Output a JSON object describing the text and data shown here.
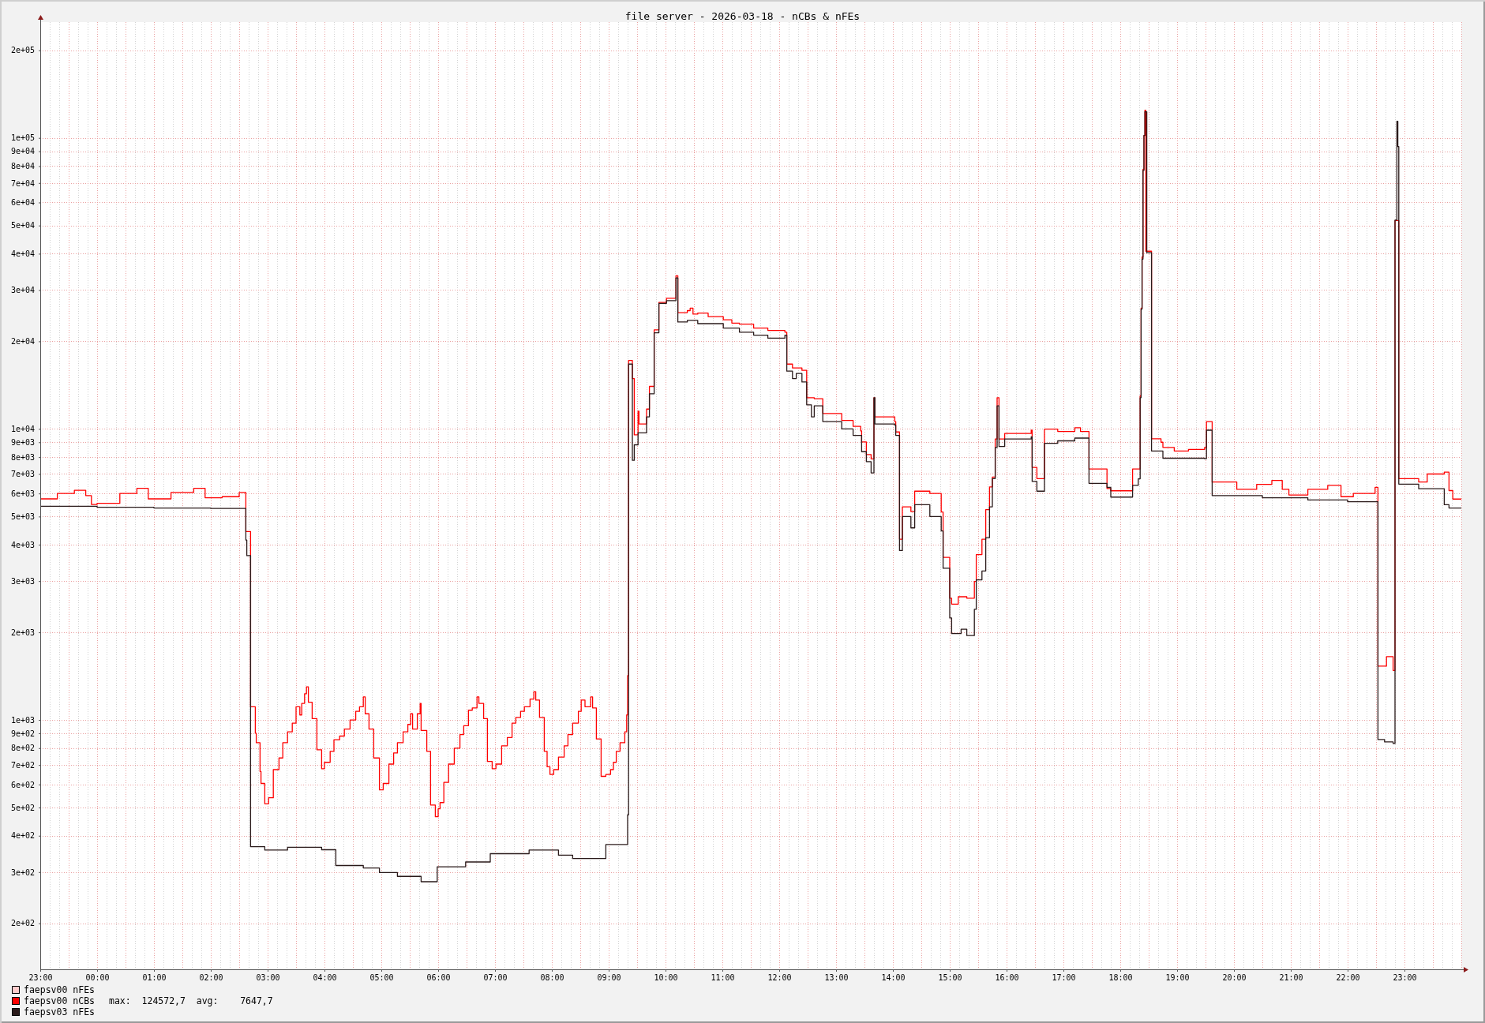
{
  "chart_data": {
    "type": "step",
    "title": "file server - 2026-03-18 - nCBs & nFEs",
    "log": "y",
    "grid": true,
    "legend": "bottom left",
    "xlim": [
      "2026-03-17T23:00",
      "2026-03-19T00:00"
    ],
    "ylim": [
      139,
      250000
    ],
    "xticks": [
      {
        "value": "2026-03-17T23:00",
        "label": "23:00"
      },
      {
        "value": "2026-03-17T23:10",
        "label": null
      },
      {
        "value": "2026-03-17T23:20",
        "label": null
      },
      {
        "value": "2026-03-17T23:30",
        "label": null
      },
      {
        "value": "2026-03-17T23:40",
        "label": null
      },
      {
        "value": "2026-03-17T23:50",
        "label": null
      },
      {
        "value": "2026-03-18T00:00",
        "label": "00:00"
      },
      {
        "value": "2026-03-18T00:10",
        "label": null
      },
      {
        "value": "2026-03-18T00:20",
        "label": null
      },
      {
        "value": "2026-03-18T00:30",
        "label": null
      },
      {
        "value": "2026-03-18T00:40",
        "label": null
      },
      {
        "value": "2026-03-18T00:50",
        "label": null
      },
      {
        "value": "2026-03-18T01:00",
        "label": "01:00"
      },
      {
        "value": "2026-03-18T01:10",
        "label": null
      },
      {
        "value": "2026-03-18T01:20",
        "label": null
      },
      {
        "value": "2026-03-18T01:30",
        "label": null
      },
      {
        "value": "2026-03-18T01:40",
        "label": null
      },
      {
        "value": "2026-03-18T01:50",
        "label": null
      },
      {
        "value": "2026-03-18T02:00",
        "label": "02:00"
      },
      {
        "value": "2026-03-18T02:10",
        "label": null
      },
      {
        "value": "2026-03-18T02:20",
        "label": null
      },
      {
        "value": "2026-03-18T02:30",
        "label": null
      },
      {
        "value": "2026-03-18T02:40",
        "label": null
      },
      {
        "value": "2026-03-18T02:50",
        "label": null
      },
      {
        "value": "2026-03-18T03:00",
        "label": "03:00"
      },
      {
        "value": "2026-03-18T03:10",
        "label": null
      },
      {
        "value": "2026-03-18T03:20",
        "label": null
      },
      {
        "value": "2026-03-18T03:30",
        "label": null
      },
      {
        "value": "2026-03-18T03:40",
        "label": null
      },
      {
        "value": "2026-03-18T03:50",
        "label": null
      },
      {
        "value": "2026-03-18T04:00",
        "label": "04:00"
      },
      {
        "value": "2026-03-18T04:10",
        "label": null
      },
      {
        "value": "2026-03-18T04:20",
        "label": null
      },
      {
        "value": "2026-03-18T04:30",
        "label": null
      },
      {
        "value": "2026-03-18T04:40",
        "label": null
      },
      {
        "value": "2026-03-18T04:50",
        "label": null
      },
      {
        "value": "2026-03-18T05:00",
        "label": "05:00"
      },
      {
        "value": "2026-03-18T05:10",
        "label": null
      },
      {
        "value": "2026-03-18T05:20",
        "label": null
      },
      {
        "value": "2026-03-18T05:30",
        "label": null
      },
      {
        "value": "2026-03-18T05:40",
        "label": null
      },
      {
        "value": "2026-03-18T05:50",
        "label": null
      },
      {
        "value": "2026-03-18T06:00",
        "label": "06:00"
      },
      {
        "value": "2026-03-18T06:10",
        "label": null
      },
      {
        "value": "2026-03-18T06:20",
        "label": null
      },
      {
        "value": "2026-03-18T06:30",
        "label": null
      },
      {
        "value": "2026-03-18T06:40",
        "label": null
      },
      {
        "value": "2026-03-18T06:50",
        "label": null
      },
      {
        "value": "2026-03-18T07:00",
        "label": "07:00"
      },
      {
        "value": "2026-03-18T07:10",
        "label": null
      },
      {
        "value": "2026-03-18T07:20",
        "label": null
      },
      {
        "value": "2026-03-18T07:30",
        "label": null
      },
      {
        "value": "2026-03-18T07:40",
        "label": null
      },
      {
        "value": "2026-03-18T07:50",
        "label": null
      },
      {
        "value": "2026-03-18T08:00",
        "label": "08:00"
      },
      {
        "value": "2026-03-18T08:10",
        "label": null
      },
      {
        "value": "2026-03-18T08:20",
        "label": null
      },
      {
        "value": "2026-03-18T08:30",
        "label": null
      },
      {
        "value": "2026-03-18T08:40",
        "label": null
      },
      {
        "value": "2026-03-18T08:50",
        "label": null
      },
      {
        "value": "2026-03-18T09:00",
        "label": "09:00"
      },
      {
        "value": "2026-03-18T09:10",
        "label": null
      },
      {
        "value": "2026-03-18T09:20",
        "label": null
      },
      {
        "value": "2026-03-18T09:30",
        "label": null
      },
      {
        "value": "2026-03-18T09:40",
        "label": null
      },
      {
        "value": "2026-03-18T09:50",
        "label": null
      },
      {
        "value": "2026-03-18T10:00",
        "label": "10:00"
      },
      {
        "value": "2026-03-18T10:10",
        "label": null
      },
      {
        "value": "2026-03-18T10:20",
        "label": null
      },
      {
        "value": "2026-03-18T10:30",
        "label": null
      },
      {
        "value": "2026-03-18T10:40",
        "label": null
      },
      {
        "value": "2026-03-18T10:50",
        "label": null
      },
      {
        "value": "2026-03-18T11:00",
        "label": "11:00"
      },
      {
        "value": "2026-03-18T11:10",
        "label": null
      },
      {
        "value": "2026-03-18T11:20",
        "label": null
      },
      {
        "value": "2026-03-18T11:30",
        "label": null
      },
      {
        "value": "2026-03-18T11:40",
        "label": null
      },
      {
        "value": "2026-03-18T11:50",
        "label": null
      },
      {
        "value": "2026-03-18T12:00",
        "label": "12:00"
      },
      {
        "value": "2026-03-18T12:10",
        "label": null
      },
      {
        "value": "2026-03-18T12:20",
        "label": null
      },
      {
        "value": "2026-03-18T12:30",
        "label": null
      },
      {
        "value": "2026-03-18T12:40",
        "label": null
      },
      {
        "value": "2026-03-18T12:50",
        "label": null
      },
      {
        "value": "2026-03-18T13:00",
        "label": "13:00"
      },
      {
        "value": "2026-03-18T13:10",
        "label": null
      },
      {
        "value": "2026-03-18T13:20",
        "label": null
      },
      {
        "value": "2026-03-18T13:30",
        "label": null
      },
      {
        "value": "2026-03-18T13:40",
        "label": null
      },
      {
        "value": "2026-03-18T13:50",
        "label": null
      },
      {
        "value": "2026-03-18T14:00",
        "label": "14:00"
      },
      {
        "value": "2026-03-18T14:10",
        "label": null
      },
      {
        "value": "2026-03-18T14:20",
        "label": null
      },
      {
        "value": "2026-03-18T14:30",
        "label": null
      },
      {
        "value": "2026-03-18T14:40",
        "label": null
      },
      {
        "value": "2026-03-18T14:50",
        "label": null
      },
      {
        "value": "2026-03-18T15:00",
        "label": "15:00"
      },
      {
        "value": "2026-03-18T15:10",
        "label": null
      },
      {
        "value": "2026-03-18T15:20",
        "label": null
      },
      {
        "value": "2026-03-18T15:30",
        "label": null
      },
      {
        "value": "2026-03-18T15:40",
        "label": null
      },
      {
        "value": "2026-03-18T15:50",
        "label": null
      },
      {
        "value": "2026-03-18T16:00",
        "label": "16:00"
      },
      {
        "value": "2026-03-18T16:10",
        "label": null
      },
      {
        "value": "2026-03-18T16:20",
        "label": null
      },
      {
        "value": "2026-03-18T16:30",
        "label": null
      },
      {
        "value": "2026-03-18T16:40",
        "label": null
      },
      {
        "value": "2026-03-18T16:50",
        "label": null
      },
      {
        "value": "2026-03-18T17:00",
        "label": "17:00"
      },
      {
        "value": "2026-03-18T17:10",
        "label": null
      },
      {
        "value": "2026-03-18T17:20",
        "label": null
      },
      {
        "value": "2026-03-18T17:30",
        "label": null
      },
      {
        "value": "2026-03-18T17:40",
        "label": null
      },
      {
        "value": "2026-03-18T17:50",
        "label": null
      },
      {
        "value": "2026-03-18T18:00",
        "label": "18:00"
      },
      {
        "value": "2026-03-18T18:10",
        "label": null
      },
      {
        "value": "2026-03-18T18:20",
        "label": null
      },
      {
        "value": "2026-03-18T18:30",
        "label": null
      },
      {
        "value": "2026-03-18T18:40",
        "label": null
      },
      {
        "value": "2026-03-18T18:50",
        "label": null
      },
      {
        "value": "2026-03-18T19:00",
        "label": "19:00"
      },
      {
        "value": "2026-03-18T19:10",
        "label": null
      },
      {
        "value": "2026-03-18T19:20",
        "label": null
      },
      {
        "value": "2026-03-18T19:30",
        "label": null
      },
      {
        "value": "2026-03-18T19:40",
        "label": null
      },
      {
        "value": "2026-03-18T19:50",
        "label": null
      },
      {
        "value": "2026-03-18T20:00",
        "label": "20:00"
      },
      {
        "value": "2026-03-18T20:10",
        "label": null
      },
      {
        "value": "2026-03-18T20:20",
        "label": null
      },
      {
        "value": "2026-03-18T20:30",
        "label": null
      },
      {
        "value": "2026-03-18T20:40",
        "label": null
      },
      {
        "value": "2026-03-18T20:50",
        "label": null
      },
      {
        "value": "2026-03-18T21:00",
        "label": "21:00"
      },
      {
        "value": "2026-03-18T21:10",
        "label": null
      },
      {
        "value": "2026-03-18T21:20",
        "label": null
      },
      {
        "value": "2026-03-18T21:30",
        "label": null
      },
      {
        "value": "2026-03-18T21:40",
        "label": null
      },
      {
        "value": "2026-03-18T21:50",
        "label": null
      },
      {
        "value": "2026-03-18T22:00",
        "label": "22:00"
      },
      {
        "value": "2026-03-18T22:10",
        "label": null
      },
      {
        "value": "2026-03-18T22:20",
        "label": null
      },
      {
        "value": "2026-03-18T22:30",
        "label": null
      },
      {
        "value": "2026-03-18T22:40",
        "label": null
      },
      {
        "value": "2026-03-18T22:50",
        "label": null
      },
      {
        "value": "2026-03-18T23:00",
        "label": "23:00"
      },
      {
        "value": "2026-03-18T23:10",
        "label": null
      },
      {
        "value": "2026-03-18T23:20",
        "label": null
      },
      {
        "value": "2026-03-18T23:30",
        "label": null
      },
      {
        "value": "2026-03-18T23:40",
        "label": null
      },
      {
        "value": "2026-03-18T23:50",
        "label": null
      },
      {
        "value": "2026-03-19T00:00",
        "label": null
      }
    ],
    "yticks": [
      {
        "value": 200,
        "label": "2e+02"
      },
      {
        "value": 300,
        "label": "3e+02"
      },
      {
        "value": 400,
        "label": "4e+02"
      },
      {
        "value": 500,
        "label": "5e+02"
      },
      {
        "value": 600,
        "label": "6e+02"
      },
      {
        "value": 700,
        "label": "7e+02"
      },
      {
        "value": 800,
        "label": "8e+02"
      },
      {
        "value": 900,
        "label": "9e+02"
      },
      {
        "value": 1000,
        "label": "1e+03"
      },
      {
        "value": 2000,
        "label": "2e+03"
      },
      {
        "value": 3000,
        "label": "3e+03"
      },
      {
        "value": 4000,
        "label": "4e+03"
      },
      {
        "value": 5000,
        "label": "5e+03"
      },
      {
        "value": 6000,
        "label": "6e+03"
      },
      {
        "value": 7000,
        "label": "7e+03"
      },
      {
        "value": 8000,
        "label": "8e+03"
      },
      {
        "value": 9000,
        "label": "9e+03"
      },
      {
        "value": 10000,
        "label": "1e+04"
      },
      {
        "value": 20000,
        "label": "2e+04"
      },
      {
        "value": 30000,
        "label": "3e+04"
      },
      {
        "value": 40000,
        "label": "4e+04"
      },
      {
        "value": 50000,
        "label": "5e+04"
      },
      {
        "value": 60000,
        "label": "6e+04"
      },
      {
        "value": 70000,
        "label": "7e+04"
      },
      {
        "value": 80000,
        "label": "8e+04"
      },
      {
        "value": 90000,
        "label": "9e+04"
      },
      {
        "value": 100000,
        "label": "1e+05"
      },
      {
        "value": 200000,
        "label": "2e+05"
      }
    ],
    "annotations": [
      "max:  124572,7  avg:    7647,7"
    ],
    "series": [
      {
        "name": "faepsv00 nFEs",
        "color": "#ffcccc"
      },
      {
        "name": "faepsv00 nCBs",
        "color": "#ff0000",
        "x": [
          "2026-03-17T23:00",
          "2026-03-17T23:18",
          "2026-03-17T23:36",
          "2026-03-17T23:48",
          "2026-03-17T23:54",
          "2026-03-18T00:00",
          "2026-03-18T00:24",
          "2026-03-18T00:42",
          "2026-03-18T00:54",
          "2026-03-18T01:18",
          "2026-03-18T01:42",
          "2026-03-18T01:54",
          "2026-03-18T02:12",
          "2026-03-18T02:30",
          "2026-03-18T02:37",
          "2026-03-18T02:42",
          "2026-03-18T02:47",
          "2026-03-18T02:48",
          "2026-03-18T02:52",
          "2026-03-18T02:53",
          "2026-03-18T02:57",
          "2026-03-18T03:01",
          "2026-03-18T03:06",
          "2026-03-18T03:12",
          "2026-03-18T03:16",
          "2026-03-18T03:21",
          "2026-03-18T03:26",
          "2026-03-18T03:30",
          "2026-03-18T03:34",
          "2026-03-18T03:36",
          "2026-03-18T03:39",
          "2026-03-18T03:41",
          "2026-03-18T03:43",
          "2026-03-18T03:47",
          "2026-03-18T03:52",
          "2026-03-18T03:57",
          "2026-03-18T04:00",
          "2026-03-18T04:06",
          "2026-03-18T04:10",
          "2026-03-18T04:16",
          "2026-03-18T04:21",
          "2026-03-18T04:27",
          "2026-03-18T04:33",
          "2026-03-18T04:37",
          "2026-03-18T04:41",
          "2026-03-18T04:43",
          "2026-03-18T04:47",
          "2026-03-18T04:52",
          "2026-03-18T04:58",
          "2026-03-18T05:02",
          "2026-03-18T05:08",
          "2026-03-18T05:13",
          "2026-03-18T05:17",
          "2026-03-18T05:23",
          "2026-03-18T05:28",
          "2026-03-18T05:31",
          "2026-03-18T05:33",
          "2026-03-18T05:38",
          "2026-03-18T05:41",
          "2026-03-18T05:42",
          "2026-03-18T05:48",
          "2026-03-18T05:52",
          "2026-03-18T05:57",
          "2026-03-18T06:00",
          "2026-03-18T06:02",
          "2026-03-18T06:06",
          "2026-03-18T06:11",
          "2026-03-18T06:17",
          "2026-03-18T06:23",
          "2026-03-18T06:27",
          "2026-03-18T06:32",
          "2026-03-18T06:36",
          "2026-03-18T06:41",
          "2026-03-18T06:43",
          "2026-03-18T06:48",
          "2026-03-18T06:52",
          "2026-03-18T06:57",
          "2026-03-18T07:01",
          "2026-03-18T07:07",
          "2026-03-18T07:13",
          "2026-03-18T07:18",
          "2026-03-18T07:22",
          "2026-03-18T07:27",
          "2026-03-18T07:31",
          "2026-03-18T07:37",
          "2026-03-18T07:41",
          "2026-03-18T07:43",
          "2026-03-18T07:47",
          "2026-03-18T07:52",
          "2026-03-18T07:55",
          "2026-03-18T07:58",
          "2026-03-18T08:02",
          "2026-03-18T08:07",
          "2026-03-18T08:13",
          "2026-03-18T08:17",
          "2026-03-18T08:22",
          "2026-03-18T08:28",
          "2026-03-18T08:31",
          "2026-03-18T08:35",
          "2026-03-18T08:41",
          "2026-03-18T08:43",
          "2026-03-18T08:47",
          "2026-03-18T08:52",
          "2026-03-18T08:57",
          "2026-03-18T09:02",
          "2026-03-18T09:05",
          "2026-03-18T09:08",
          "2026-03-18T09:12",
          "2026-03-18T09:17",
          "2026-03-18T09:19",
          "2026-03-18T09:20",
          "2026-03-18T09:21",
          "2026-03-18T09:25",
          "2026-03-18T09:27",
          "2026-03-18T09:31",
          "2026-03-18T09:32",
          "2026-03-18T09:40",
          "2026-03-18T09:43",
          "2026-03-18T09:48",
          "2026-03-18T09:53",
          "2026-03-18T10:01",
          "2026-03-18T10:11",
          "2026-03-18T10:13",
          "2026-03-18T10:23",
          "2026-03-18T10:26",
          "2026-03-18T10:29",
          "2026-03-18T10:34",
          "2026-03-18T10:45",
          "2026-03-18T11:01",
          "2026-03-18T11:10",
          "2026-03-18T11:18",
          "2026-03-18T11:33",
          "2026-03-18T11:48",
          "2026-03-18T12:06",
          "2026-03-18T12:08",
          "2026-03-18T12:14",
          "2026-03-18T12:24",
          "2026-03-18T12:29",
          "2026-03-18T12:37",
          "2026-03-18T12:46",
          "2026-03-18T13:06",
          "2026-03-18T13:18",
          "2026-03-18T13:26",
          "2026-03-18T13:27",
          "2026-03-18T13:32",
          "2026-03-18T13:37",
          "2026-03-18T13:40",
          "2026-03-18T13:41",
          "2026-03-18T14:02",
          "2026-03-18T14:03",
          "2026-03-18T14:07",
          "2026-03-18T14:10",
          "2026-03-18T14:19",
          "2026-03-18T14:23",
          "2026-03-18T14:39",
          "2026-03-18T14:51",
          "2026-03-18T14:53",
          "2026-03-18T15:00",
          "2026-03-18T15:02",
          "2026-03-18T15:09",
          "2026-03-18T15:18",
          "2026-03-18T15:26",
          "2026-03-18T15:28",
          "2026-03-18T15:34",
          "2026-03-18T15:38",
          "2026-03-18T15:42",
          "2026-03-18T15:45",
          "2026-03-18T15:48",
          "2026-03-18T15:50",
          "2026-03-18T15:52",
          "2026-03-18T15:58",
          "2026-03-18T16:26",
          "2026-03-18T16:27",
          "2026-03-18T16:32",
          "2026-03-18T16:40",
          "2026-03-18T16:54",
          "2026-03-18T17:12",
          "2026-03-18T17:18",
          "2026-03-18T17:27",
          "2026-03-18T17:46",
          "2026-03-18T17:50",
          "2026-03-18T18:13",
          "2026-03-18T18:21",
          "2026-03-18T18:22",
          "2026-03-18T18:23",
          "2026-03-18T18:24",
          "2026-03-18T18:25",
          "2026-03-18T18:26",
          "2026-03-18T18:27",
          "2026-03-18T18:33",
          "2026-03-18T18:43",
          "2026-03-18T18:45",
          "2026-03-18T18:57",
          "2026-03-18T19:12",
          "2026-03-18T19:29",
          "2026-03-18T19:31",
          "2026-03-18T19:37",
          "2026-03-18T20:03",
          "2026-03-18T20:24",
          "2026-03-18T20:40",
          "2026-03-18T20:51",
          "2026-03-18T20:58",
          "2026-03-18T21:18",
          "2026-03-18T21:39",
          "2026-03-18T21:53",
          "2026-03-18T22:06",
          "2026-03-18T22:29",
          "2026-03-18T22:32",
          "2026-03-18T22:41",
          "2026-03-18T22:48",
          "2026-03-18T22:50",
          "2026-03-18T22:54",
          "2026-03-18T23:15",
          "2026-03-18T23:24",
          "2026-03-18T23:42",
          "2026-03-18T23:47",
          "2026-03-18T23:51",
          "2026-03-19T00:00"
        ],
        "values": [
          5750,
          6000,
          6150,
          5900,
          5500,
          5550,
          6000,
          6250,
          5750,
          6050,
          6250,
          5800,
          5850,
          6050,
          4440,
          1110,
          900,
          835,
          665,
          605,
          515,
          540,
          675,
          740,
          835,
          910,
          975,
          1110,
          1040,
          1140,
          1230,
          1300,
          1150,
          1010,
          790,
          680,
          715,
          780,
          855,
          880,
          930,
          1000,
          1070,
          1110,
          1200,
          1050,
          930,
          740,
          575,
          605,
          705,
          770,
          835,
          910,
          965,
          1050,
          930,
          1050,
          1140,
          920,
          780,
          510,
          465,
          495,
          520,
          610,
          705,
          800,
          890,
          955,
          1080,
          1100,
          1200,
          1140,
          1010,
          720,
          680,
          705,
          815,
          870,
          975,
          1020,
          1070,
          1110,
          1180,
          1250,
          1170,
          1020,
          780,
          690,
          650,
          675,
          745,
          815,
          890,
          975,
          1070,
          1170,
          1110,
          1200,
          1100,
          860,
          640,
          650,
          675,
          715,
          780,
          835,
          910,
          1040,
          1420,
          17200,
          14900,
          9540,
          11500,
          10400,
          11700,
          14000,
          21900,
          27200,
          28100,
          33600,
          25100,
          25500,
          26000,
          24800,
          25000,
          24300,
          23700,
          23100,
          22900,
          22200,
          21800,
          21500,
          16700,
          16200,
          15900,
          12800,
          12700,
          11300,
          10700,
          10200,
          9840,
          9020,
          8160,
          7890,
          12800,
          11000,
          10600,
          9760,
          4180,
          5400,
          5200,
          6110,
          6000,
          5180,
          3620,
          2620,
          2500,
          2650,
          2620,
          2990,
          3700,
          4180,
          5280,
          6320,
          6830,
          9230,
          12800,
          9230,
          9650,
          9900,
          7380,
          6750,
          9980,
          9800,
          10100,
          9800,
          7280,
          6240,
          6130,
          7280,
          13000,
          26000,
          39000,
          78000,
          102000,
          124572.7,
          40800,
          9250,
          9000,
          8640,
          8400,
          8500,
          8640,
          10600,
          6570,
          6200,
          6450,
          6650,
          6200,
          5930,
          6200,
          6400,
          5850,
          6000,
          6300,
          1530,
          1650,
          1480,
          52000,
          6750,
          6570,
          7000,
          7100,
          6140,
          5740,
          5740
        ]
      },
      {
        "name": "faepsv03 nFEs",
        "color": "#2a1a1a",
        "x": [
          "2026-03-17T23:00",
          "2026-03-18T00:00",
          "2026-03-18T01:00",
          "2026-03-18T02:00",
          "2026-03-18T02:37",
          "2026-03-18T02:38",
          "2026-03-18T02:42",
          "2026-03-18T02:57",
          "2026-03-18T03:21",
          "2026-03-18T03:57",
          "2026-03-18T04:12",
          "2026-03-18T04:41",
          "2026-03-18T04:58",
          "2026-03-18T05:17",
          "2026-03-18T05:42",
          "2026-03-18T05:59",
          "2026-03-18T06:29",
          "2026-03-18T06:55",
          "2026-03-18T07:36",
          "2026-03-18T08:07",
          "2026-03-18T08:22",
          "2026-03-18T08:57",
          "2026-03-18T09:20",
          "2026-03-18T09:21",
          "2026-03-18T09:25",
          "2026-03-18T09:27",
          "2026-03-18T09:31",
          "2026-03-18T09:40",
          "2026-03-18T09:43",
          "2026-03-18T09:48",
          "2026-03-18T09:53",
          "2026-03-18T10:01",
          "2026-03-18T10:11",
          "2026-03-18T10:13",
          "2026-03-18T10:23",
          "2026-03-18T10:34",
          "2026-03-18T11:01",
          "2026-03-18T11:18",
          "2026-03-18T11:33",
          "2026-03-18T11:48",
          "2026-03-18T12:06",
          "2026-03-18T12:08",
          "2026-03-18T12:14",
          "2026-03-18T12:18",
          "2026-03-18T12:24",
          "2026-03-18T12:29",
          "2026-03-18T12:34",
          "2026-03-18T12:37",
          "2026-03-18T12:46",
          "2026-03-18T13:06",
          "2026-03-18T13:18",
          "2026-03-18T13:27",
          "2026-03-18T13:32",
          "2026-03-18T13:37",
          "2026-03-18T13:40",
          "2026-03-18T13:41",
          "2026-03-18T14:02",
          "2026-03-18T14:03",
          "2026-03-18T14:07",
          "2026-03-18T14:10",
          "2026-03-18T14:19",
          "2026-03-18T14:23",
          "2026-03-18T14:39",
          "2026-03-18T14:51",
          "2026-03-18T14:53",
          "2026-03-18T15:00",
          "2026-03-18T15:02",
          "2026-03-18T15:12",
          "2026-03-18T15:18",
          "2026-03-18T15:26",
          "2026-03-18T15:28",
          "2026-03-18T15:34",
          "2026-03-18T15:38",
          "2026-03-18T15:42",
          "2026-03-18T15:45",
          "2026-03-18T15:48",
          "2026-03-18T15:50",
          "2026-03-18T15:52",
          "2026-03-18T15:58",
          "2026-03-18T16:26",
          "2026-03-18T16:27",
          "2026-03-18T16:32",
          "2026-03-18T16:40",
          "2026-03-18T16:54",
          "2026-03-18T17:12",
          "2026-03-18T17:27",
          "2026-03-18T17:46",
          "2026-03-18T17:50",
          "2026-03-18T18:13",
          "2026-03-18T18:19",
          "2026-03-18T18:21",
          "2026-03-18T18:22",
          "2026-03-18T18:23",
          "2026-03-18T18:24",
          "2026-03-18T18:25",
          "2026-03-18T18:26",
          "2026-03-18T18:28",
          "2026-03-18T18:33",
          "2026-03-18T18:45",
          "2026-03-18T19:29",
          "2026-03-18T19:31",
          "2026-03-18T19:37",
          "2026-03-18T20:30",
          "2026-03-18T21:18",
          "2026-03-18T22:00",
          "2026-03-18T22:32",
          "2026-03-18T22:39",
          "2026-03-18T22:48",
          "2026-03-18T22:50",
          "2026-03-18T22:52",
          "2026-03-18T22:53",
          "2026-03-18T22:54",
          "2026-03-18T23:15",
          "2026-03-18T23:42",
          "2026-03-18T23:47",
          "2026-03-19T00:00"
        ],
        "values": [
          5420,
          5380,
          5350,
          5330,
          4150,
          3670,
          367,
          357,
          365,
          358,
          316,
          310,
          299,
          290,
          278,
          313,
          325,
          347,
          357,
          343,
          334,
          373,
          472,
          16700,
          7800,
          8820,
          9690,
          11000,
          13200,
          21400,
          27000,
          27600,
          33000,
          23300,
          23600,
          23000,
          22200,
          21500,
          21000,
          20500,
          21000,
          15800,
          14900,
          15500,
          14500,
          12100,
          11000,
          12000,
          10600,
          10000,
          9500,
          8350,
          7720,
          7060,
          12800,
          10400,
          10300,
          9500,
          3820,
          5000,
          4570,
          5490,
          5000,
          4460,
          3320,
          2240,
          1980,
          2050,
          1950,
          2400,
          3030,
          3250,
          4230,
          5400,
          6750,
          8630,
          12000,
          8700,
          9230,
          9400,
          6600,
          6110,
          8920,
          9100,
          9300,
          6500,
          6300,
          5830,
          6400,
          6740,
          12800,
          25800,
          38300,
          77300,
          102000,
          123000,
          40300,
          8400,
          7930,
          7900,
          9900,
          5900,
          5800,
          5700,
          5620,
          856,
          840,
          830,
          52200,
          114000,
          93400,
          6460,
          6230,
          5490,
          5350,
          5350
        ]
      }
    ]
  }
}
